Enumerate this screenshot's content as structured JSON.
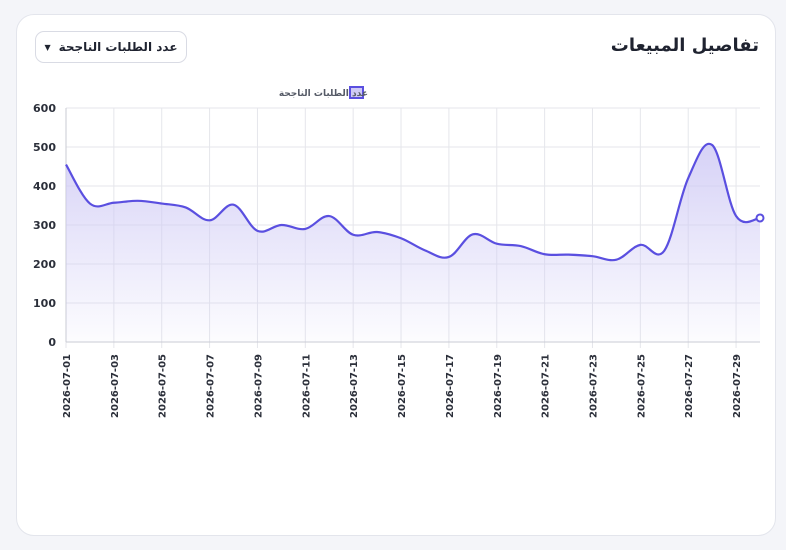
{
  "card": {
    "title": "تفاصيل المبيعات",
    "dropdown": {
      "selected": "عدد الطلبات الناجحة",
      "icon": "caret-down-icon"
    }
  },
  "colors": {
    "line": "#5a4fe0",
    "fill": "#cfcaf5",
    "grid": "#e5e6eb",
    "axis": "#c9cbd3",
    "text": "#2b2f3a"
  },
  "chart_data": {
    "type": "area",
    "legend": {
      "label": "عدد الطلبات الناجحة",
      "position": "top"
    },
    "series": [
      {
        "name": "عدد الطلبات الناجحة",
        "values": [
          455,
          355,
          357,
          362,
          355,
          345,
          312,
          352,
          285,
          300,
          290,
          323,
          275,
          282,
          266,
          235,
          218,
          276,
          252,
          246,
          225,
          224,
          220,
          211,
          249,
          234,
          420,
          505,
          323,
          318
        ]
      }
    ],
    "x": [
      "2026-07-01",
      "2026-07-02",
      "2026-07-03",
      "2026-07-04",
      "2026-07-05",
      "2026-07-06",
      "2026-07-07",
      "2026-07-08",
      "2026-07-09",
      "2026-07-10",
      "2026-07-11",
      "2026-07-12",
      "2026-07-13",
      "2026-07-14",
      "2026-07-15",
      "2026-07-16",
      "2026-07-17",
      "2026-07-18",
      "2026-07-19",
      "2026-07-20",
      "2026-07-21",
      "2026-07-22",
      "2026-07-23",
      "2026-07-24",
      "2026-07-25",
      "2026-07-26",
      "2026-07-27",
      "2026-07-28",
      "2026-07-29",
      "2026-07-30"
    ],
    "x_tick_labels": [
      "2026-07-01",
      "2026-07-03",
      "2026-07-05",
      "2026-07-07",
      "2026-07-09",
      "2026-07-11",
      "2026-07-13",
      "2026-07-15",
      "2026-07-17",
      "2026-07-19",
      "2026-07-21",
      "2026-07-23",
      "2026-07-25",
      "2026-07-27",
      "2026-07-29"
    ],
    "y_ticks": [
      0,
      100,
      200,
      300,
      400,
      500,
      600
    ],
    "ylim": [
      0,
      600
    ],
    "grid": true,
    "xlabel": "",
    "ylabel": ""
  }
}
